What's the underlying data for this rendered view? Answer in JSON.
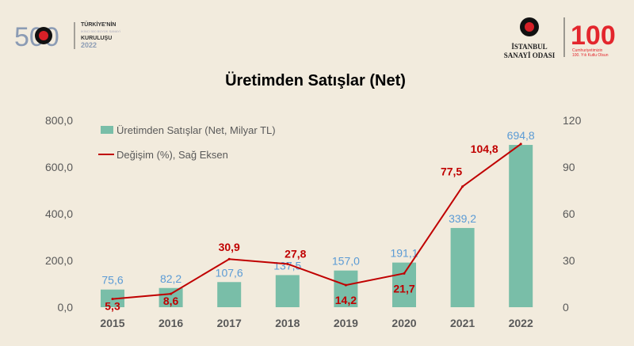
{
  "logos": {
    "left": {
      "number": "500",
      "line1": "TÜRKİYE'NİN",
      "line2": "İKİNCİ 500 BÜYÜK SANAYİ",
      "line3": "KURULUŞU",
      "year": "2022"
    },
    "iso": {
      "line1": "İSTANBUL",
      "line2": "SANAYİ ODASI"
    },
    "centennial": {
      "number": "100",
      "line1": "Cumhuriyetimizin",
      "line2": "100. Yılı Kutlu Olsun"
    }
  },
  "colors": {
    "bar": "#79bea8",
    "line": "#c00000",
    "bar_label": "#5b9bd5",
    "line_label": "#c00000",
    "axis_text": "#595959"
  },
  "chart_data": {
    "type": "bar+line",
    "title": "Üretimden Satışlar (Net)",
    "categories": [
      "2015",
      "2016",
      "2017",
      "2018",
      "2019",
      "2020",
      "2021",
      "2022"
    ],
    "series": [
      {
        "name": "Üretimden Satışlar (Net, Milyar TL)",
        "type": "bar",
        "axis": "left",
        "values": [
          75.6,
          82.2,
          107.6,
          137.5,
          157.0,
          191.1,
          339.2,
          694.8
        ],
        "labels": [
          "75,6",
          "82,2",
          "107,6",
          "137,5",
          "157,0",
          "191,1",
          "339,2",
          "694,8"
        ]
      },
      {
        "name": "Değişim (%), Sağ Eksen",
        "type": "line",
        "axis": "right",
        "values": [
          5.3,
          8.6,
          30.9,
          27.8,
          14.2,
          21.7,
          77.5,
          104.8
        ],
        "labels": [
          "5,3",
          "8,6",
          "30,9",
          "27,8",
          "14,2",
          "21,7",
          "77,5",
          "104,8"
        ]
      }
    ],
    "left_axis": {
      "range": [
        0,
        800
      ],
      "ticks": [
        "0,0",
        "200,0",
        "400,0",
        "600,0",
        "800,0"
      ],
      "tick_values": [
        0,
        200,
        400,
        600,
        800
      ]
    },
    "right_axis": {
      "range": [
        0,
        120
      ],
      "ticks": [
        "0",
        "30",
        "60",
        "90",
        "120"
      ],
      "tick_values": [
        0,
        30,
        60,
        90,
        120
      ]
    },
    "legend": "top-left",
    "grid": false
  }
}
